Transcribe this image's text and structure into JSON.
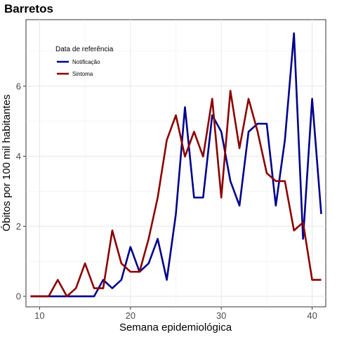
{
  "chart_data": {
    "type": "line",
    "title": "Barretos",
    "xlabel": "Semana epidemiológica",
    "ylabel": "Óbitos por 100 mil habitantes",
    "xlim": [
      8.5,
      41.5
    ],
    "ylim": [
      -0.3,
      7.9
    ],
    "xticks": [
      10,
      20,
      30,
      40
    ],
    "yticks": [
      0,
      2,
      4,
      6
    ],
    "grid": true,
    "legend": {
      "title": "Data de referência",
      "position": "top-left"
    },
    "x": [
      9,
      10,
      11,
      12,
      13,
      14,
      15,
      16,
      17,
      18,
      19,
      20,
      21,
      22,
      23,
      24,
      25,
      26,
      27,
      28,
      29,
      30,
      31,
      32,
      33,
      34,
      35,
      36,
      37,
      38,
      39,
      40,
      41
    ],
    "series": [
      {
        "name": "Notificação",
        "color": "#00008b",
        "values": [
          0,
          0,
          0,
          0,
          0,
          0,
          0,
          0,
          0.47,
          0.23,
          0.47,
          1.41,
          0.7,
          0.94,
          1.64,
          0.47,
          2.35,
          5.4,
          2.82,
          2.82,
          5.17,
          4.7,
          3.29,
          2.59,
          4.7,
          4.93,
          4.93,
          2.59,
          4.46,
          7.51,
          1.64,
          5.64,
          2.35
        ]
      },
      {
        "name": "Sintoma",
        "color": "#8b0000",
        "values": [
          0,
          0,
          0,
          0.47,
          0,
          0.23,
          0.94,
          0.23,
          0.23,
          1.88,
          0.94,
          0.7,
          0.7,
          1.64,
          2.82,
          4.46,
          5.17,
          3.99,
          4.7,
          3.99,
          5.64,
          2.82,
          5.87,
          4.23,
          5.64,
          4.7,
          3.52,
          3.29,
          3.29,
          1.88,
          2.11,
          0.47,
          0.47
        ]
      }
    ]
  }
}
